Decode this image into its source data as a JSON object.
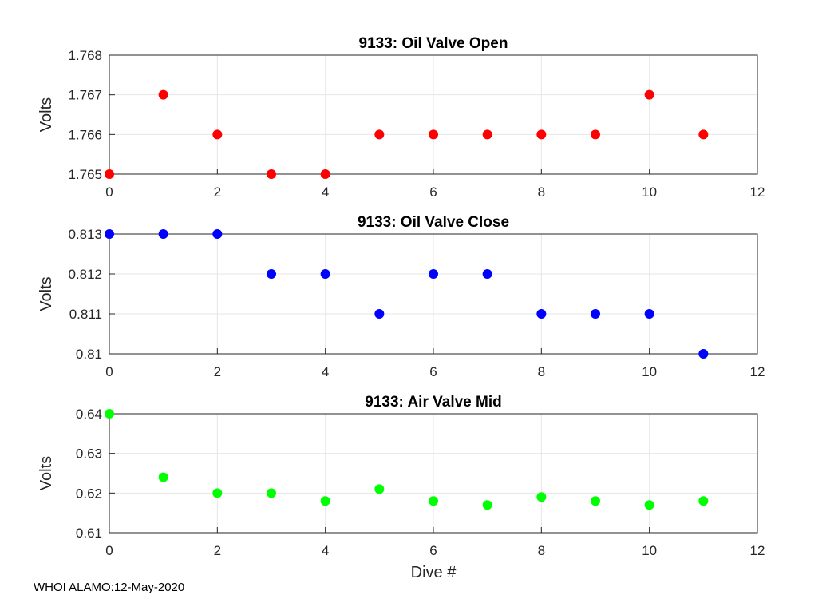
{
  "chart_data": [
    {
      "type": "scatter",
      "title": "9133: Oil Valve Open",
      "xlabel": "",
      "ylabel": "Volts",
      "xlim": [
        0,
        12
      ],
      "ylim": [
        1.765,
        1.768
      ],
      "xticks": [
        "0",
        "2",
        "4",
        "6",
        "8",
        "10",
        "12"
      ],
      "yticks": [
        "1.765",
        "1.766",
        "1.767",
        "1.768"
      ],
      "grid": true,
      "color": "#ff0000",
      "x": [
        0,
        1,
        2,
        3,
        4,
        5,
        6,
        7,
        8,
        9,
        10,
        11
      ],
      "y": [
        1.765,
        1.767,
        1.766,
        1.765,
        1.765,
        1.766,
        1.766,
        1.766,
        1.766,
        1.766,
        1.767,
        1.766
      ]
    },
    {
      "type": "scatter",
      "title": "9133: Oil Valve Close",
      "xlabel": "",
      "ylabel": "Volts",
      "xlim": [
        0,
        12
      ],
      "ylim": [
        0.81,
        0.813
      ],
      "xticks": [
        "0",
        "2",
        "4",
        "6",
        "8",
        "10",
        "12"
      ],
      "yticks": [
        "0.81",
        "0.811",
        "0.812",
        "0.813"
      ],
      "grid": true,
      "color": "#0000ff",
      "x": [
        0,
        1,
        2,
        3,
        4,
        5,
        6,
        7,
        8,
        9,
        10,
        11
      ],
      "y": [
        0.813,
        0.813,
        0.813,
        0.812,
        0.812,
        0.811,
        0.812,
        0.812,
        0.811,
        0.811,
        0.811,
        0.81
      ]
    },
    {
      "type": "scatter",
      "title": "9133: Air Valve Mid",
      "xlabel": "Dive #",
      "ylabel": "Volts",
      "xlim": [
        0,
        12
      ],
      "ylim": [
        0.61,
        0.64
      ],
      "xticks": [
        "0",
        "2",
        "4",
        "6",
        "8",
        "10",
        "12"
      ],
      "yticks": [
        "0.61",
        "0.62",
        "0.63",
        "0.64"
      ],
      "grid": true,
      "color": "#00ff00",
      "x": [
        0,
        1,
        2,
        3,
        4,
        5,
        6,
        7,
        8,
        9,
        10,
        11
      ],
      "y": [
        0.64,
        0.624,
        0.62,
        0.62,
        0.618,
        0.621,
        0.618,
        0.617,
        0.619,
        0.618,
        0.617,
        0.618
      ]
    }
  ],
  "footer": "WHOI ALAMO:12-May-2020"
}
